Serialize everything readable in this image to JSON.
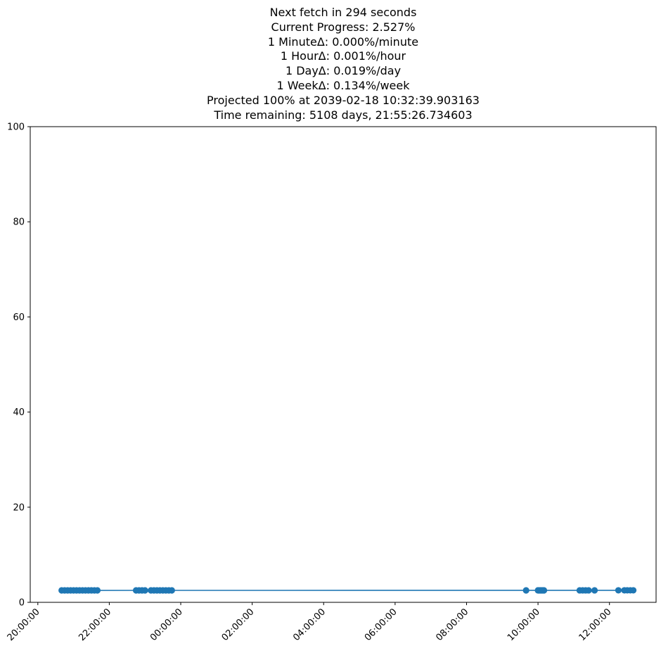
{
  "title_lines": [
    "Next fetch in 294 seconds",
    "Current Progress: 2.527%",
    "1 MinuteΔ: 0.000%/minute",
    "1 HourΔ: 0.001%/hour",
    "1 DayΔ: 0.019%/day",
    "1 WeekΔ: 0.134%/week",
    "Projected 100% at 2039-02-18 10:32:39.903163",
    "Time remaining: 5108 days, 21:55:26.734603"
  ],
  "colors": {
    "series": "#1f77b4",
    "axis": "#000000",
    "background": "#ffffff"
  },
  "chart_data": {
    "type": "line",
    "markers": "circle",
    "grid": false,
    "legend": "none",
    "x_unit": "time of day (two consecutive days)",
    "xlim": [
      "20:00:00",
      "12:40:00"
    ],
    "ylim": [
      0,
      100
    ],
    "y_ticks": [
      0,
      20,
      40,
      60,
      80,
      100
    ],
    "x_ticks": [
      "20:00:00",
      "22:00:00",
      "00:00:00",
      "02:00:00",
      "04:00:00",
      "06:00:00",
      "08:00:00",
      "10:00:00",
      "12:00:00"
    ],
    "series": [
      {
        "x": [
          "20:40:00",
          "20:45:00",
          "20:50:00",
          "20:55:00",
          "21:00:00",
          "21:05:00",
          "21:10:00",
          "21:15:00",
          "21:20:00",
          "21:25:00",
          "21:30:00",
          "21:35:00",
          "21:40:00",
          "22:45:00",
          "22:50:00",
          "22:55:00",
          "23:00:00",
          "23:10:00",
          "23:15:00",
          "23:20:00",
          "23:25:00",
          "23:30:00",
          "23:35:00",
          "23:40:00",
          "23:45:00",
          "09:40:00",
          "10:00:00",
          "10:02:00",
          "10:04:00",
          "10:06:00",
          "10:08:00",
          "10:10:00",
          "11:10:00",
          "11:15:00",
          "11:20:00",
          "11:25:00",
          "11:35:00",
          "12:15:00",
          "12:25:00",
          "12:30:00",
          "12:35:00",
          "12:40:00"
        ],
        "y": [
          2.51,
          2.51,
          2.51,
          2.51,
          2.51,
          2.51,
          2.51,
          2.51,
          2.51,
          2.51,
          2.51,
          2.51,
          2.51,
          2.515,
          2.515,
          2.515,
          2.515,
          2.515,
          2.515,
          2.515,
          2.515,
          2.515,
          2.515,
          2.515,
          2.515,
          2.52,
          2.52,
          2.52,
          2.52,
          2.52,
          2.52,
          2.52,
          2.523,
          2.523,
          2.523,
          2.523,
          2.523,
          2.527,
          2.527,
          2.527,
          2.527,
          2.527
        ]
      }
    ]
  }
}
